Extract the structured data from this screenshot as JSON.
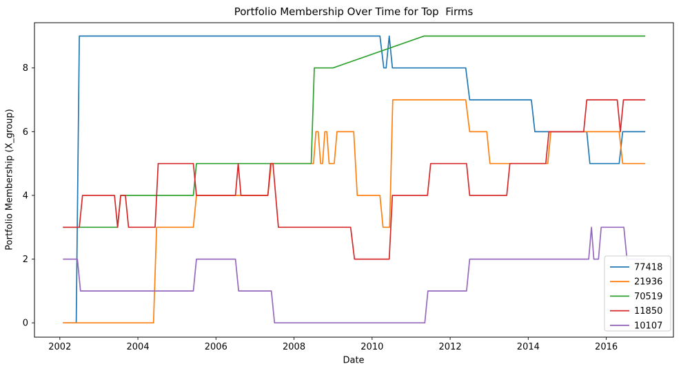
{
  "chart_data": {
    "type": "line",
    "title": "Portfolio Membership Over Time for Top  Firms",
    "xlabel": "Date",
    "ylabel": "Portfolio Membership (X_group)",
    "x_range": [
      2001.35,
      2017.72
    ],
    "y_range": [
      -0.45,
      9.42
    ],
    "x_ticks": [
      2002,
      2004,
      2006,
      2008,
      2010,
      2012,
      2014,
      2016
    ],
    "y_ticks": [
      0,
      2,
      4,
      6,
      8
    ],
    "grid": false,
    "legend_position": "lower right",
    "series": [
      {
        "name": "77418",
        "color": "#1f77b4",
        "points": [
          [
            2002.08,
            0
          ],
          [
            2002.42,
            0
          ],
          [
            2002.5,
            9
          ],
          [
            2010.2,
            9
          ],
          [
            2010.3,
            8
          ],
          [
            2010.36,
            8
          ],
          [
            2010.44,
            9
          ],
          [
            2010.52,
            8
          ],
          [
            2012.4,
            8
          ],
          [
            2012.5,
            7
          ],
          [
            2014.08,
            7
          ],
          [
            2014.17,
            6
          ],
          [
            2015.5,
            6
          ],
          [
            2015.58,
            5
          ],
          [
            2016.33,
            5
          ],
          [
            2016.42,
            6
          ],
          [
            2017.0,
            6
          ]
        ]
      },
      {
        "name": "21936",
        "color": "#ff7f0e",
        "points": [
          [
            2002.08,
            0
          ],
          [
            2004.4,
            0
          ],
          [
            2004.48,
            3
          ],
          [
            2005.42,
            3
          ],
          [
            2005.5,
            4
          ],
          [
            2007.33,
            4
          ],
          [
            2007.42,
            5
          ],
          [
            2008.5,
            5
          ],
          [
            2008.56,
            6
          ],
          [
            2008.62,
            6
          ],
          [
            2008.68,
            5
          ],
          [
            2008.73,
            5
          ],
          [
            2008.79,
            6
          ],
          [
            2008.84,
            6
          ],
          [
            2008.9,
            5
          ],
          [
            2009.03,
            5
          ],
          [
            2009.1,
            6
          ],
          [
            2009.53,
            6
          ],
          [
            2009.62,
            4
          ],
          [
            2010.2,
            4
          ],
          [
            2010.28,
            3
          ],
          [
            2010.45,
            3
          ],
          [
            2010.53,
            7
          ],
          [
            2012.4,
            7
          ],
          [
            2012.5,
            6
          ],
          [
            2012.94,
            6
          ],
          [
            2013.02,
            5
          ],
          [
            2014.5,
            5
          ],
          [
            2014.58,
            6
          ],
          [
            2016.33,
            6
          ],
          [
            2016.42,
            5
          ],
          [
            2017.0,
            5
          ]
        ]
      },
      {
        "name": "70519",
        "color": "#2ca02c",
        "points": [
          [
            2002.08,
            3
          ],
          [
            2003.48,
            3
          ],
          [
            2003.56,
            4
          ],
          [
            2005.42,
            4
          ],
          [
            2005.5,
            5
          ],
          [
            2008.44,
            5
          ],
          [
            2008.52,
            8
          ],
          [
            2009.0,
            8
          ],
          [
            2011.33,
            9
          ],
          [
            2017.0,
            9
          ]
        ]
      },
      {
        "name": "11850",
        "color": "#d62728",
        "points": [
          [
            2002.08,
            3
          ],
          [
            2002.5,
            3
          ],
          [
            2002.58,
            4
          ],
          [
            2003.4,
            4
          ],
          [
            2003.48,
            3
          ],
          [
            2003.56,
            4
          ],
          [
            2003.68,
            4
          ],
          [
            2003.76,
            3
          ],
          [
            2004.44,
            3
          ],
          [
            2004.52,
            5
          ],
          [
            2005.42,
            5
          ],
          [
            2005.5,
            4
          ],
          [
            2006.5,
            4
          ],
          [
            2006.57,
            5
          ],
          [
            2006.64,
            4
          ],
          [
            2007.33,
            4
          ],
          [
            2007.4,
            5
          ],
          [
            2007.46,
            5
          ],
          [
            2007.6,
            3
          ],
          [
            2009.45,
            3
          ],
          [
            2009.55,
            2
          ],
          [
            2010.44,
            2
          ],
          [
            2010.52,
            4
          ],
          [
            2011.42,
            4
          ],
          [
            2011.5,
            5
          ],
          [
            2012.42,
            5
          ],
          [
            2012.5,
            4
          ],
          [
            2013.45,
            4
          ],
          [
            2013.53,
            5
          ],
          [
            2014.45,
            5
          ],
          [
            2014.53,
            6
          ],
          [
            2015.42,
            6
          ],
          [
            2015.5,
            7
          ],
          [
            2016.28,
            7
          ],
          [
            2016.36,
            6
          ],
          [
            2016.44,
            7
          ],
          [
            2017.0,
            7
          ]
        ]
      },
      {
        "name": "10107",
        "color": "#9467bd",
        "points": [
          [
            2002.08,
            2
          ],
          [
            2002.45,
            2
          ],
          [
            2002.53,
            1
          ],
          [
            2005.42,
            1
          ],
          [
            2005.5,
            2
          ],
          [
            2006.5,
            2
          ],
          [
            2006.58,
            1
          ],
          [
            2007.42,
            1
          ],
          [
            2007.5,
            0
          ],
          [
            2011.35,
            0
          ],
          [
            2011.43,
            1
          ],
          [
            2012.42,
            1
          ],
          [
            2012.5,
            2
          ],
          [
            2015.55,
            2
          ],
          [
            2015.62,
            3
          ],
          [
            2015.68,
            2
          ],
          [
            2015.8,
            2
          ],
          [
            2015.87,
            3
          ],
          [
            2016.45,
            3
          ],
          [
            2016.53,
            2
          ],
          [
            2017.0,
            2
          ]
        ]
      }
    ]
  }
}
